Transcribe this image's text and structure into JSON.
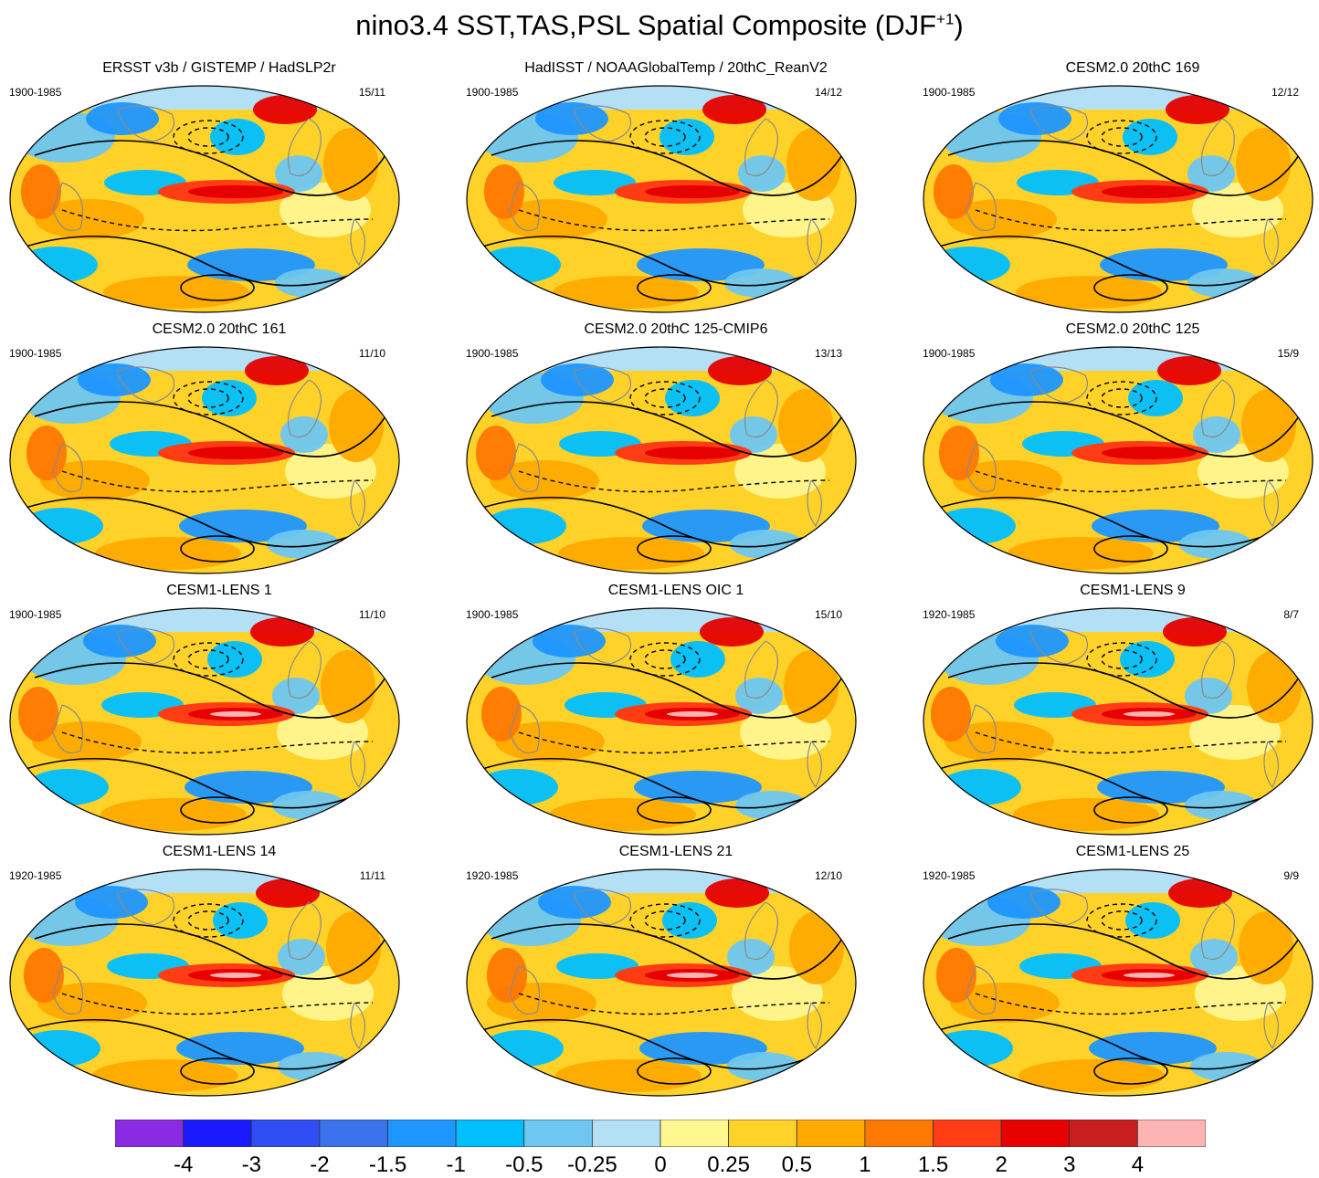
{
  "title": {
    "main": "nino3.4 SST,TAS,PSL Spatial Composite (DJF",
    "superscript": "+1",
    "suffix": ")"
  },
  "panels": [
    {
      "title": "ERSST v3b / GISTEMP / HadSLP2r",
      "period": "1900-1985",
      "count": "15/11"
    },
    {
      "title": "HadISST / NOAAGlobalTemp / 20thC_ReanV2",
      "period": "1900-1985",
      "count": "14/12"
    },
    {
      "title": "CESM2.0 20thC 169",
      "period": "1900-1985",
      "count": "12/12"
    },
    {
      "title": "CESM2.0 20thC 161",
      "period": "1900-1985",
      "count": "11/10"
    },
    {
      "title": "CESM2.0 20thC 125-CMIP6",
      "period": "1900-1985",
      "count": "13/13"
    },
    {
      "title": "CESM2.0 20thC 125",
      "period": "1900-1985",
      "count": "15/9"
    },
    {
      "title": "CESM1-LENS 1",
      "period": "1900-1985",
      "count": "11/10"
    },
    {
      "title": "CESM1-LENS OIC 1",
      "period": "1900-1985",
      "count": "15/10"
    },
    {
      "title": "CESM1-LENS 9",
      "period": "1920-1985",
      "count": "8/7"
    },
    {
      "title": "CESM1-LENS 14",
      "period": "1920-1985",
      "count": "11/11"
    },
    {
      "title": "CESM1-LENS 21",
      "period": "1920-1985",
      "count": "12/10"
    },
    {
      "title": "CESM1-LENS 25",
      "period": "1920-1985",
      "count": "9/9"
    }
  ],
  "colorbar": {
    "colors": [
      "#8a2be2",
      "#1a1aff",
      "#2e4df2",
      "#3a72eb",
      "#1e96ff",
      "#00bfff",
      "#6ec6f2",
      "#b4e0f5",
      "#fff68f",
      "#ffd22a",
      "#ffaa00",
      "#ff7800",
      "#ff3c14",
      "#e60000",
      "#c81e1e",
      "#ffb4b4"
    ],
    "labels": [
      "-4",
      "-3",
      "-2",
      "-1.5",
      "-1",
      "-0.5",
      "-0.25",
      "0",
      "0.25",
      "0.5",
      "1",
      "1.5",
      "2",
      "3",
      "4"
    ]
  }
}
